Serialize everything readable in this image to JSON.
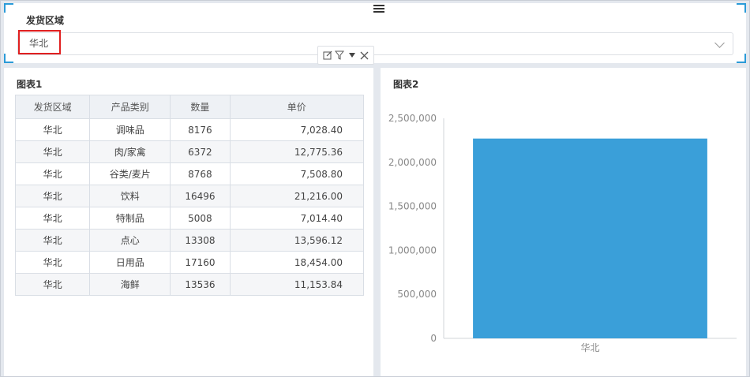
{
  "filter": {
    "title": "发货区域",
    "selected_value": "华北"
  },
  "toolbar": {
    "icons": [
      "edit-icon",
      "filter-icon",
      "dropdown-icon",
      "close-icon"
    ]
  },
  "table_panel": {
    "title": "图表1",
    "columns": [
      "发货区域",
      "产品类别",
      "数量",
      "单价"
    ],
    "rows": [
      [
        "华北",
        "调味品",
        "8176",
        "7,028.40"
      ],
      [
        "华北",
        "肉/家禽",
        "6372",
        "12,775.36"
      ],
      [
        "华北",
        "谷类/麦片",
        "8768",
        "7,508.80"
      ],
      [
        "华北",
        "饮料",
        "16496",
        "21,216.00"
      ],
      [
        "华北",
        "特制品",
        "5008",
        "7,014.40"
      ],
      [
        "华北",
        "点心",
        "13308",
        "13,596.12"
      ],
      [
        "华北",
        "日用品",
        "17160",
        "18,454.00"
      ],
      [
        "华北",
        "海鲜",
        "13536",
        "11,153.84"
      ]
    ]
  },
  "chart_panel": {
    "title": "图表2"
  },
  "chart_data": {
    "type": "bar",
    "title": "",
    "categories": [
      "华北"
    ],
    "values": [
      2270000
    ],
    "yticks": [
      "0",
      "500,000",
      "1,000,000",
      "1,500,000",
      "2,000,000",
      "2,500,000"
    ],
    "ylim": [
      0,
      2500000
    ],
    "xlabel": "",
    "ylabel": "",
    "grid": false,
    "bar_color": "#3a9fd9"
  },
  "colors": {
    "accent": "#2b9bd8",
    "highlight_border": "#e02020"
  }
}
